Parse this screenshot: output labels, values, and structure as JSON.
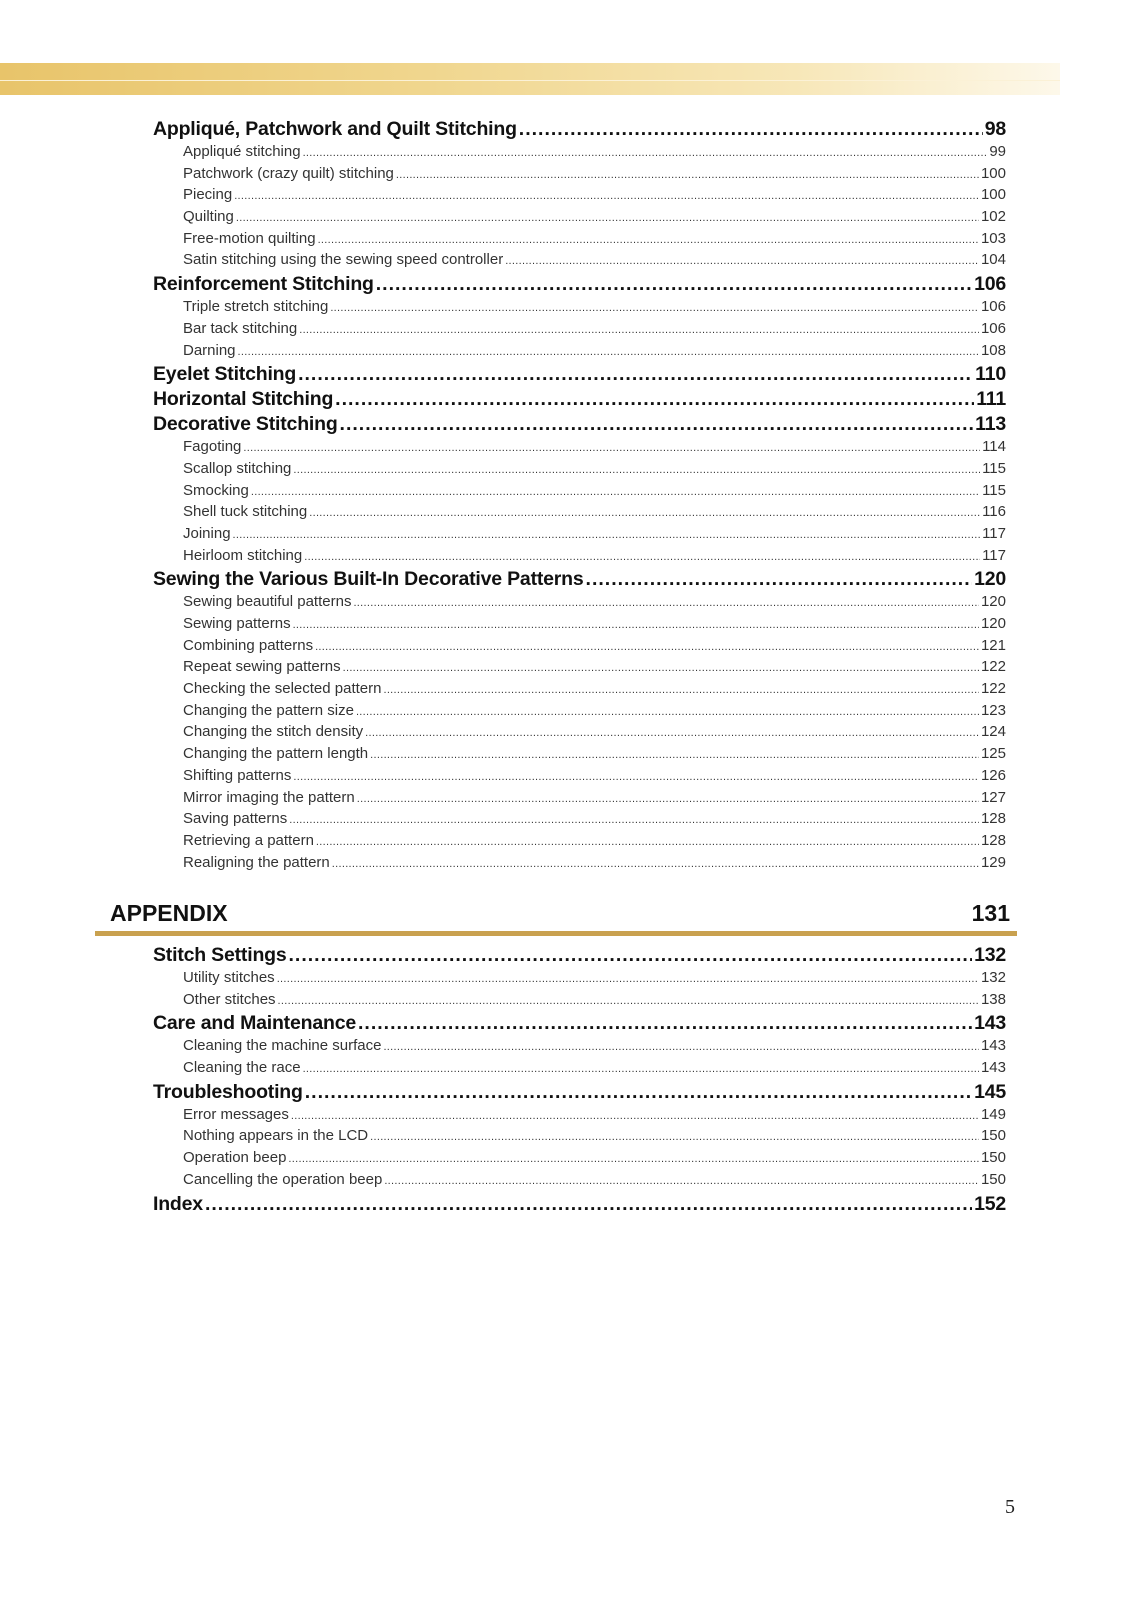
{
  "header_band_color": "#e8c46a",
  "sections": [
    {
      "entries": [
        {
          "level": "major",
          "title": "Appliqué, Patchwork and Quilt Stitching",
          "page": "98"
        },
        {
          "level": "minor",
          "title": "Appliqué stitching",
          "page": "99"
        },
        {
          "level": "minor",
          "title": "Patchwork (crazy quilt) stitching",
          "page": "100"
        },
        {
          "level": "minor",
          "title": "Piecing",
          "page": "100"
        },
        {
          "level": "minor",
          "title": "Quilting",
          "page": "102"
        },
        {
          "level": "minor",
          "title": "Free-motion quilting",
          "page": "103"
        },
        {
          "level": "minor",
          "title": "Satin stitching using the sewing speed controller",
          "page": "104"
        },
        {
          "level": "major",
          "title": "Reinforcement Stitching",
          "page": "106"
        },
        {
          "level": "minor",
          "title": "Triple stretch stitching",
          "page": "106"
        },
        {
          "level": "minor",
          "title": "Bar tack stitching",
          "page": "106"
        },
        {
          "level": "minor",
          "title": "Darning",
          "page": "108"
        },
        {
          "level": "major",
          "title": "Eyelet Stitching",
          "page": "110"
        },
        {
          "level": "major",
          "title": "Horizontal Stitching",
          "page": "111"
        },
        {
          "level": "major",
          "title": "Decorative Stitching",
          "page": "113"
        },
        {
          "level": "minor",
          "title": "Fagoting",
          "page": "114"
        },
        {
          "level": "minor",
          "title": "Scallop stitching",
          "page": "115"
        },
        {
          "level": "minor",
          "title": "Smocking",
          "page": "115"
        },
        {
          "level": "minor",
          "title": "Shell tuck stitching",
          "page": "116"
        },
        {
          "level": "minor",
          "title": "Joining",
          "page": "117"
        },
        {
          "level": "minor",
          "title": "Heirloom stitching",
          "page": "117"
        },
        {
          "level": "major",
          "title": "Sewing the Various Built-In Decorative Patterns",
          "page": "120"
        },
        {
          "level": "minor",
          "title": "Sewing beautiful patterns",
          "page": "120"
        },
        {
          "level": "minor",
          "title": "Sewing patterns",
          "page": "120"
        },
        {
          "level": "minor",
          "title": "Combining patterns",
          "page": "121"
        },
        {
          "level": "minor",
          "title": "Repeat sewing patterns",
          "page": "122"
        },
        {
          "level": "minor",
          "title": "Checking the selected pattern",
          "page": "122"
        },
        {
          "level": "minor",
          "title": "Changing the pattern size",
          "page": "123"
        },
        {
          "level": "minor",
          "title": "Changing the stitch density",
          "page": "124"
        },
        {
          "level": "minor",
          "title": "Changing the pattern length",
          "page": "125"
        },
        {
          "level": "minor",
          "title": "Shifting patterns",
          "page": "126"
        },
        {
          "level": "minor",
          "title": "Mirror imaging the pattern",
          "page": "127"
        },
        {
          "level": "minor",
          "title": "Saving patterns",
          "page": "128"
        },
        {
          "level": "minor",
          "title": "Retrieving a pattern",
          "page": "128"
        },
        {
          "level": "minor",
          "title": "Realigning the pattern",
          "page": "129"
        }
      ]
    },
    {
      "heading": "APPENDIX",
      "heading_page": "131",
      "rule_color": "#c9a14f",
      "entries": [
        {
          "level": "major",
          "title": "Stitch Settings",
          "page": "132"
        },
        {
          "level": "minor",
          "title": "Utility stitches",
          "page": "132"
        },
        {
          "level": "minor",
          "title": "Other stitches",
          "page": "138"
        },
        {
          "level": "major",
          "title": "Care and Maintenance",
          "page": "143"
        },
        {
          "level": "minor",
          "title": "Cleaning the machine surface",
          "page": "143"
        },
        {
          "level": "minor",
          "title": "Cleaning the race",
          "page": "143"
        },
        {
          "level": "major",
          "title": "Troubleshooting",
          "page": "145"
        },
        {
          "level": "minor",
          "title": "Error messages",
          "page": "149"
        },
        {
          "level": "minor",
          "title": "Nothing appears in the LCD",
          "page": "150"
        },
        {
          "level": "minor",
          "title": "Operation beep",
          "page": "150"
        },
        {
          "level": "minor",
          "title": "Cancelling the operation beep",
          "page": "150"
        },
        {
          "level": "major",
          "title": "Index",
          "page": "152"
        }
      ]
    }
  ],
  "page_number": "5"
}
